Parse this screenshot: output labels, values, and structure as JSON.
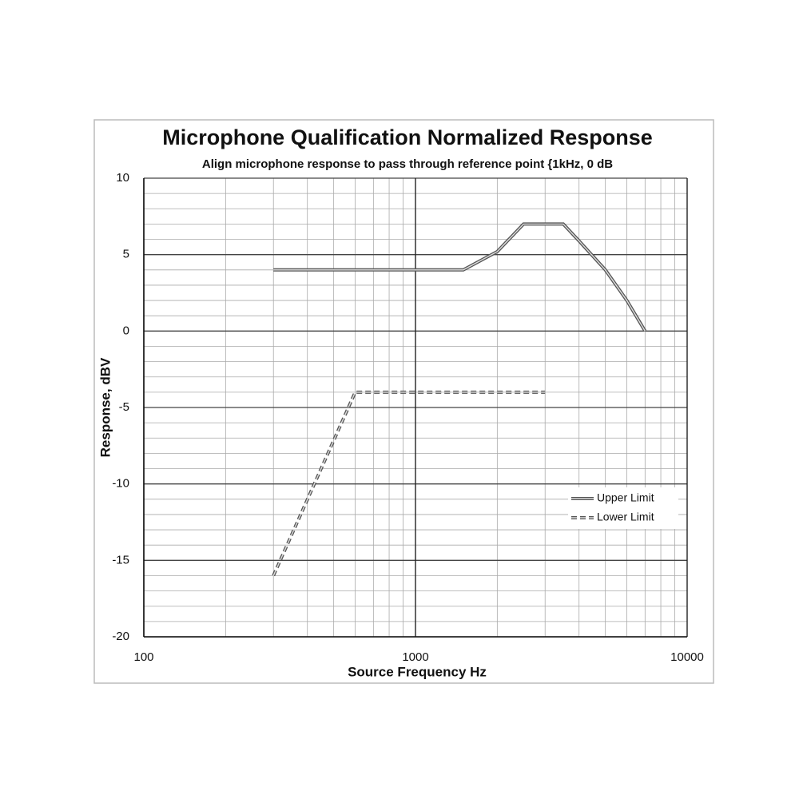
{
  "chart_data": {
    "type": "line",
    "title": "Microphone Qualification Normalized Response",
    "subtitle": "Align microphone response to pass through reference point {1kHz, 0 dB",
    "x_label": "Source Frequency Hz",
    "y_label": "Response, dBV",
    "x_scale": "log",
    "xlim": [
      100,
      10000
    ],
    "xticks": [
      100,
      1000,
      10000
    ],
    "xminorticks": [
      200,
      300,
      400,
      500,
      600,
      700,
      800,
      900,
      2000,
      3000,
      4000,
      5000,
      6000,
      7000,
      8000,
      9000
    ],
    "ylim": [
      -20,
      10
    ],
    "yticks": [
      -20,
      -15,
      -10,
      -5,
      0,
      5,
      10
    ],
    "yminorticks": [
      -19,
      -18,
      -17,
      -16,
      -14,
      -13,
      -12,
      -11,
      -9,
      -8,
      -7,
      -6,
      -4,
      -3,
      -2,
      -1,
      1,
      2,
      3,
      4,
      6,
      7,
      8,
      9
    ],
    "grid": true,
    "legend_position": "lower right",
    "series": [
      {
        "name": "Upper Limit",
        "color": "#555555",
        "dashed": false,
        "x": [
          300,
          1500,
          2000,
          2500,
          3500,
          4000,
          5000,
          6000,
          7000
        ],
        "values": [
          4,
          4,
          5.2,
          7,
          7,
          5.9,
          4,
          2,
          0
        ]
      },
      {
        "name": "Lower Limit",
        "color": "#555555",
        "dashed": true,
        "x": [
          300,
          600,
          3000
        ],
        "values": [
          -16,
          -4,
          -4
        ]
      }
    ]
  }
}
